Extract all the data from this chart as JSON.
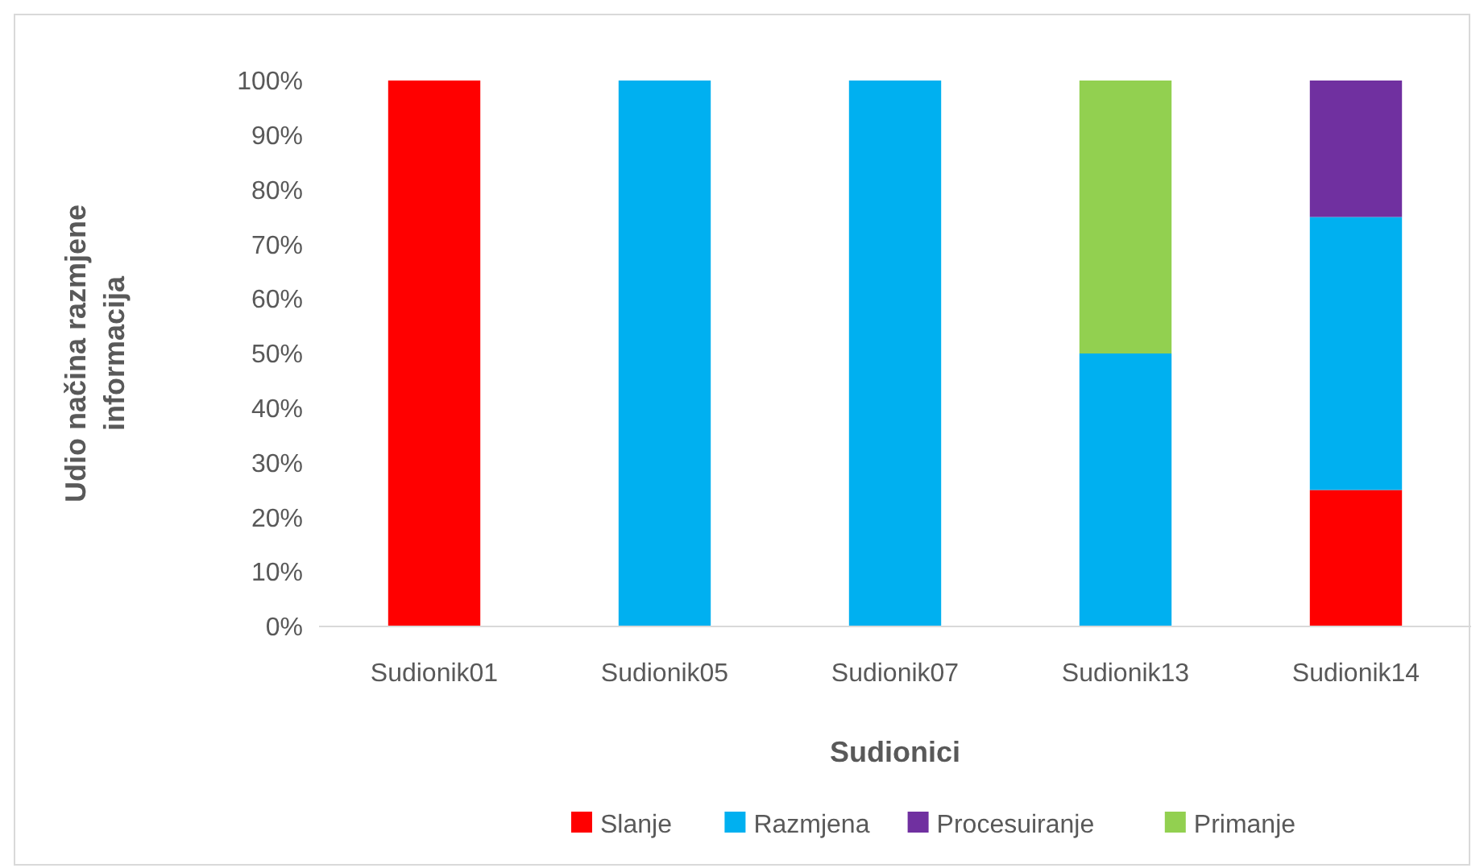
{
  "chart_data": {
    "type": "bar",
    "stacked": true,
    "xlabel": "Sudionici",
    "ylabel": "Udio načina razmjene informacija",
    "categories": [
      "Sudionik01",
      "Sudionik05",
      "Sudionik07",
      "Sudionik13",
      "Sudionik14"
    ],
    "series": [
      {
        "name": "Slanje",
        "color": "#ff0000",
        "values": [
          100,
          0,
          0,
          0,
          25
        ]
      },
      {
        "name": "Razmjena",
        "color": "#00b0f0",
        "values": [
          0,
          100,
          100,
          50,
          50
        ]
      },
      {
        "name": "Procesuiranje",
        "color": "#7030a0",
        "values": [
          0,
          0,
          0,
          0,
          25
        ]
      },
      {
        "name": "Primanje",
        "color": "#92d050",
        "values": [
          0,
          0,
          0,
          50,
          0
        ]
      }
    ],
    "ylim": [
      0,
      100
    ],
    "yticks": [
      {
        "value": 0,
        "label": "0%"
      },
      {
        "value": 10,
        "label": "10%"
      },
      {
        "value": 20,
        "label": "20%"
      },
      {
        "value": 30,
        "label": "30%"
      },
      {
        "value": 40,
        "label": "40%"
      },
      {
        "value": 50,
        "label": "50%"
      },
      {
        "value": 60,
        "label": "60%"
      },
      {
        "value": 70,
        "label": "70%"
      },
      {
        "value": 80,
        "label": "80%"
      },
      {
        "value": 90,
        "label": "90%"
      },
      {
        "value": 100,
        "label": "100%"
      }
    ],
    "legend": "bottom"
  }
}
